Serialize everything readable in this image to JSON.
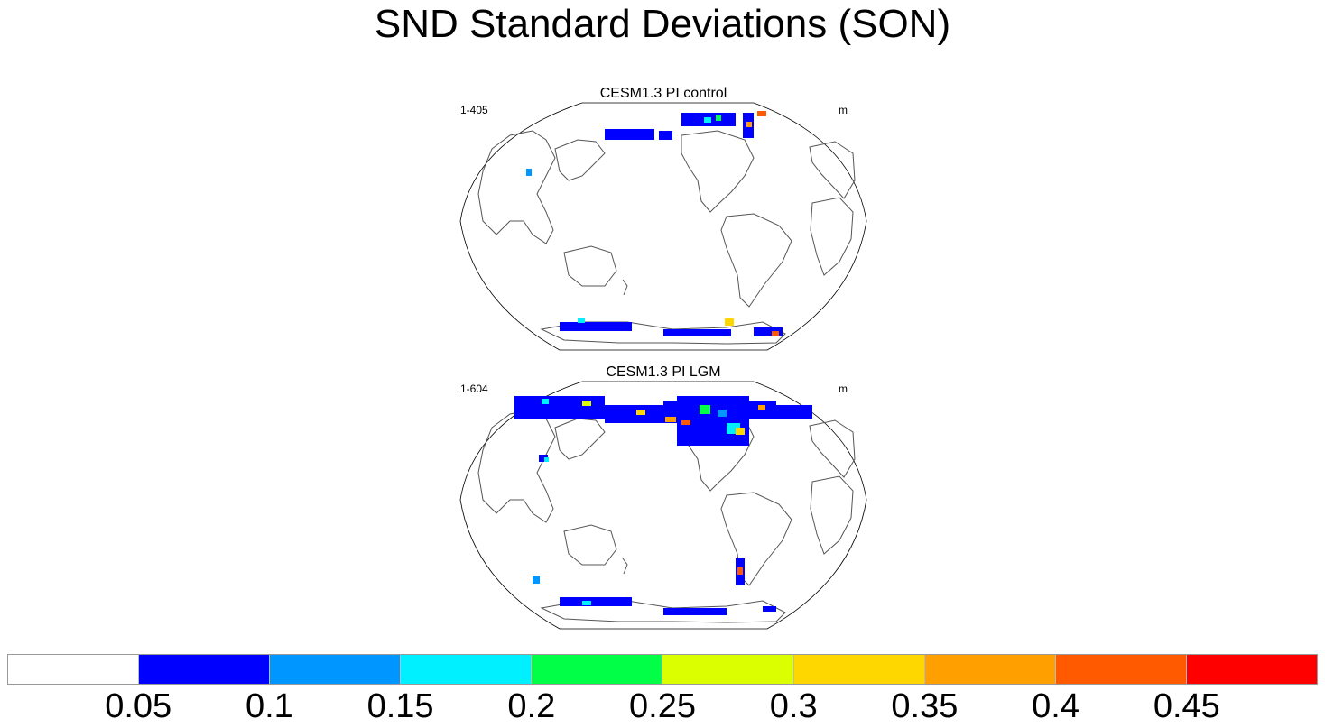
{
  "title": "SND Standard Deviations (SON)",
  "panels": [
    {
      "title": "CESM1.3 PI control",
      "left_label": "1-405",
      "right_label": "m"
    },
    {
      "title": "CESM1.3 PI LGM",
      "left_label": "1-604",
      "right_label": "m"
    }
  ],
  "colorbar": {
    "colors": [
      "#ffffff",
      "#0000ff",
      "#0096ff",
      "#00f0ff",
      "#00ff46",
      "#dcff00",
      "#ffd700",
      "#ffa000",
      "#ff5a00",
      "#ff0000"
    ],
    "labels": [
      "0.05",
      "0.1",
      "0.15",
      "0.2",
      "0.25",
      "0.3",
      "0.35",
      "0.4",
      "0.45"
    ]
  }
}
